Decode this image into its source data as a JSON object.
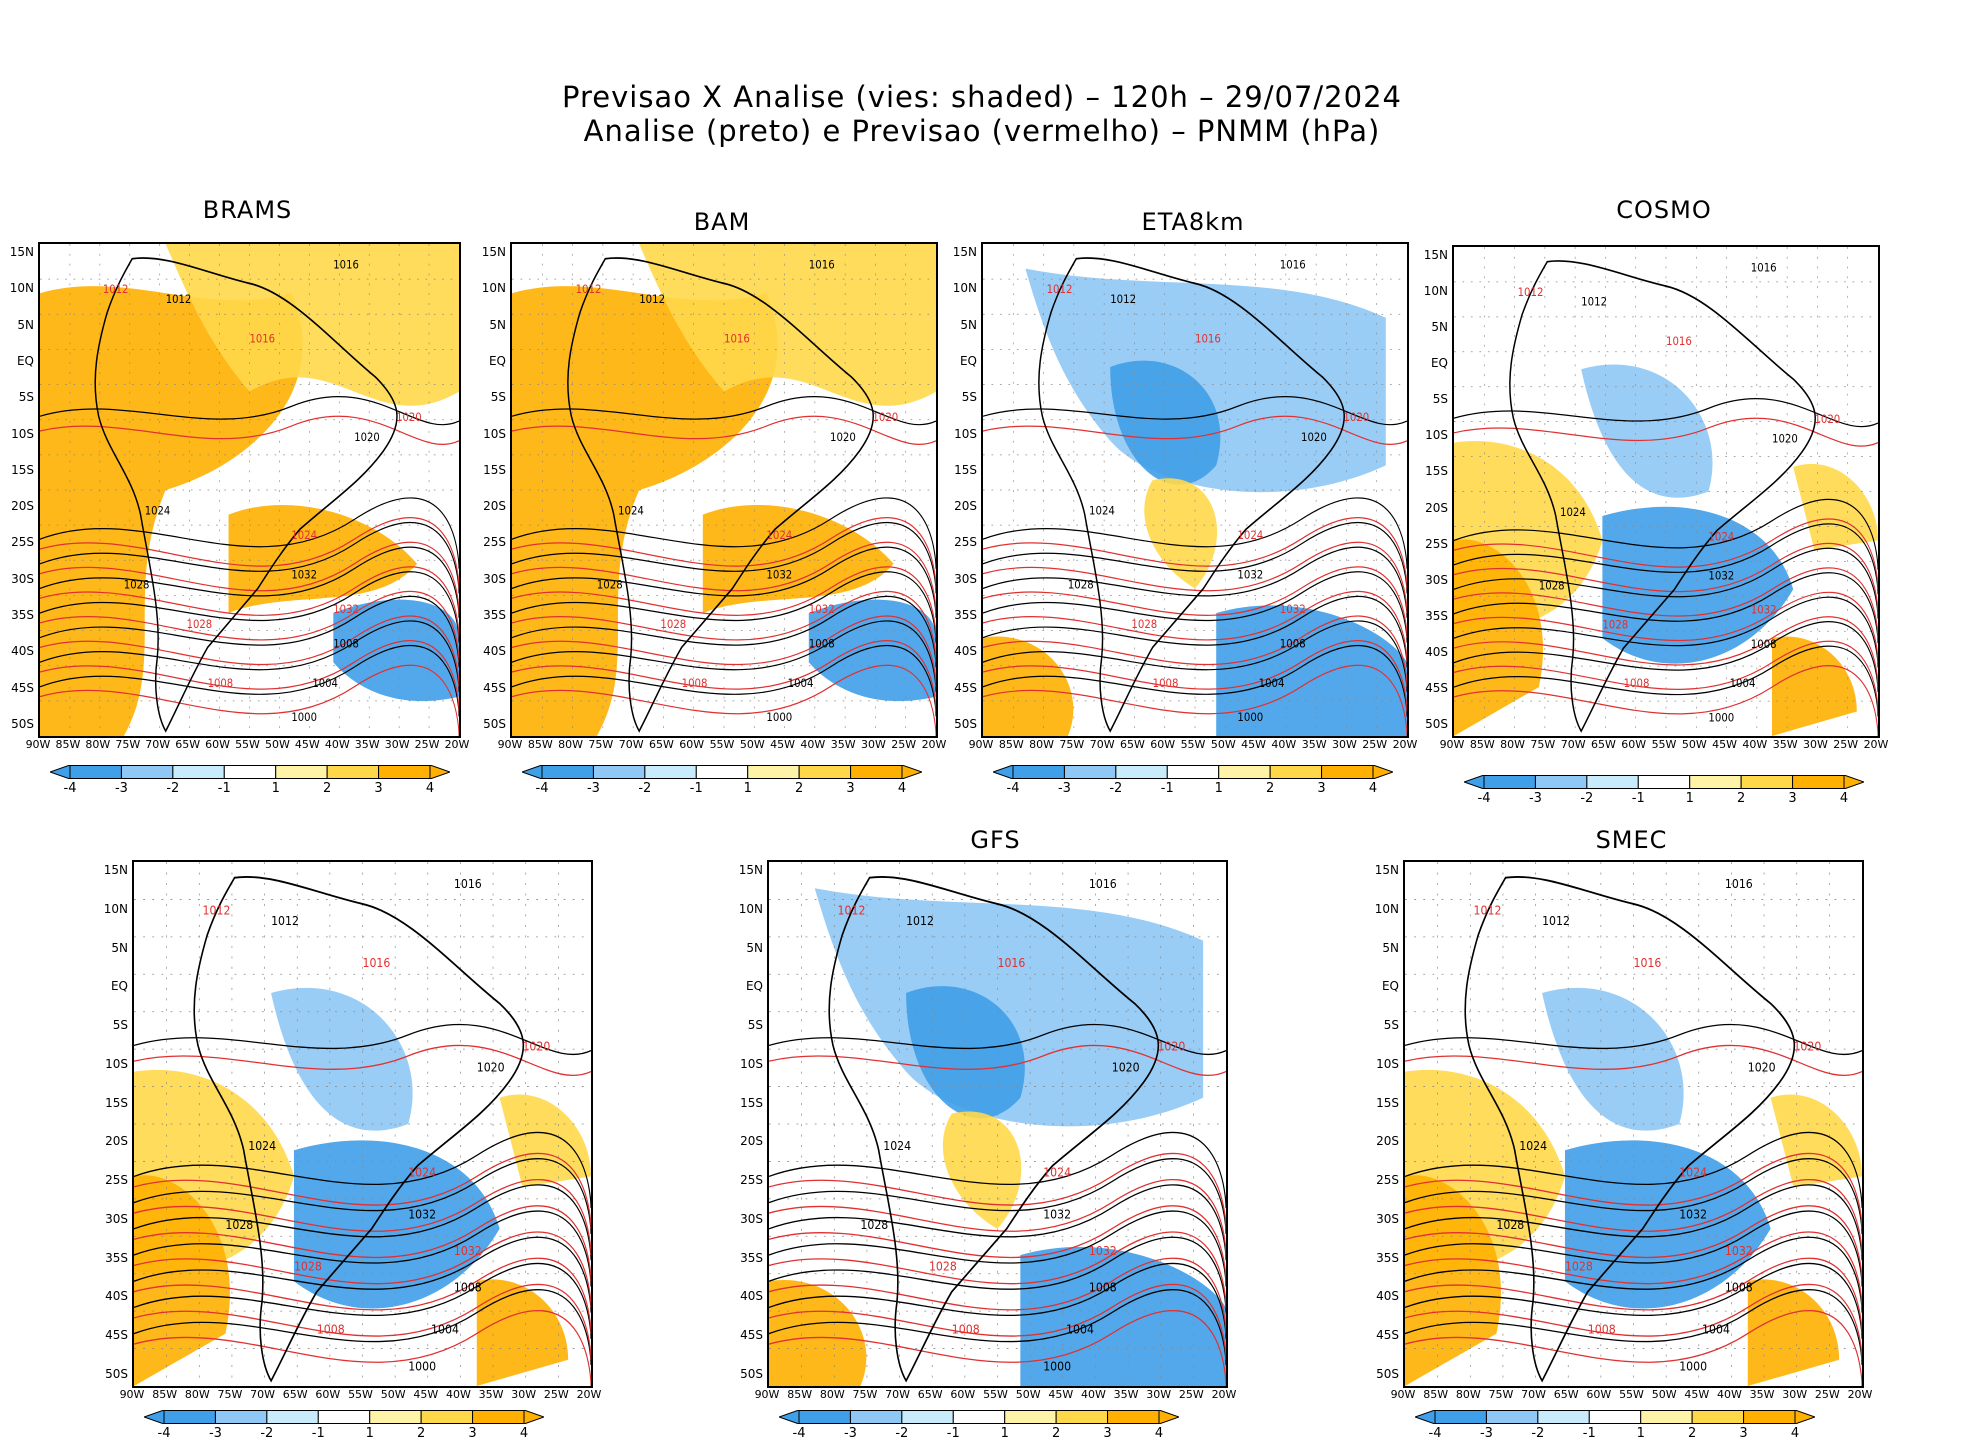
{
  "title": {
    "line1": "Previsao X Analise (vies: shaded) – 120h – 29/07/2024",
    "line2": "Analise (preto) e Previsao (vermelho) – PNMM (hPa)"
  },
  "lat_labels": [
    "15N",
    "10N",
    "5N",
    "EQ",
    "5S",
    "10S",
    "15S",
    "20S",
    "25S",
    "30S",
    "35S",
    "40S",
    "45S",
    "50S"
  ],
  "lon_labels": [
    "90W",
    "85W",
    "80W",
    "75W",
    "70W",
    "65W",
    "60W",
    "55W",
    "50W",
    "45W",
    "40W",
    "35W",
    "30W",
    "25W",
    "20W"
  ],
  "colorbar": {
    "ticks": [
      "-4",
      "-3",
      "-2",
      "-1",
      "1",
      "2",
      "3",
      "4"
    ],
    "colors": [
      "#3f9fe8",
      "#8fc8f5",
      "#c8ecfc",
      "#ffffff",
      "#fff3a8",
      "#ffd84a",
      "#ffb000"
    ]
  },
  "panels": [
    {
      "title": "BRAMS",
      "bias": "warm"
    },
    {
      "title": "BAM",
      "bias": "warm"
    },
    {
      "title": "ETA8km",
      "bias": "cool"
    },
    {
      "title": "COSMO",
      "bias": "mixed"
    },
    {
      "title": "",
      "bias": "mixed"
    },
    {
      "title": "GFS",
      "bias": "cool"
    },
    {
      "title": "SMEC",
      "bias": "mixed"
    }
  ],
  "contour_labels": {
    "analysis": [
      "1012",
      "1016",
      "1020",
      "1024",
      "1028",
      "1032",
      "1008",
      "1004",
      "1000"
    ],
    "forecast": [
      "1012",
      "1016",
      "1020",
      "1024",
      "1028",
      "1032",
      "1008"
    ]
  }
}
